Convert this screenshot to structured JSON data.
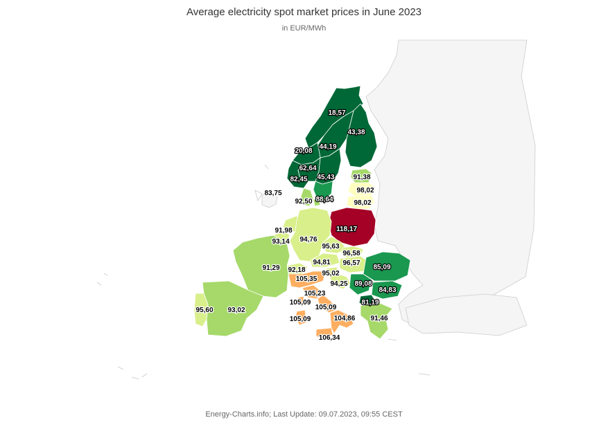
{
  "title": "Average electricity spot market prices in June 2023",
  "subtitle": "in EUR/MWh",
  "footer": "Energy-Charts.info; Last Update: 09.07.2023, 09:55 CEST",
  "colors": {
    "darkgreen": "#006837",
    "green": "#1a9850",
    "lightgreen": "#a6d96a",
    "yellowgreen": "#d9ef8b",
    "paleyellow": "#ffffbf",
    "orange": "#fdae61",
    "red": "#a50026",
    "background": "#f5f5f5"
  },
  "regions": [
    {
      "name": "Norway north (NO4)",
      "value": "18,57"
    },
    {
      "name": "Finland",
      "value": "43,38"
    },
    {
      "name": "Sweden SE2",
      "value": "44,19"
    },
    {
      "name": "Norway central (NO3)",
      "value": "20,08"
    },
    {
      "name": "Norway SE (NO1)",
      "value": "62,64"
    },
    {
      "name": "Sweden SE3",
      "value": "45,43"
    },
    {
      "name": "Norway SW (NO2)",
      "value": "82,45"
    },
    {
      "name": "Estonia",
      "value": "91,38"
    },
    {
      "name": "Latvia",
      "value": "98,02"
    },
    {
      "name": "Lithuania",
      "value": "98,02"
    },
    {
      "name": "Great Britain",
      "value": "83,75"
    },
    {
      "name": "Denmark DK1",
      "value": "92,50"
    },
    {
      "name": "Sweden SE4 / Denmark DK2",
      "value": "88,64"
    },
    {
      "name": "Poland",
      "value": "118,17"
    },
    {
      "name": "Netherlands",
      "value": "91,98"
    },
    {
      "name": "Germany",
      "value": "94,76"
    },
    {
      "name": "Belgium",
      "value": "93,14"
    },
    {
      "name": "Czech Republic",
      "value": "95,63"
    },
    {
      "name": "Slovakia",
      "value": "96,58"
    },
    {
      "name": "Hungary",
      "value": "96,57"
    },
    {
      "name": "Austria",
      "value": "94,81"
    },
    {
      "name": "Romania",
      "value": "85,09"
    },
    {
      "name": "France",
      "value": "91,29"
    },
    {
      "name": "Switzerland",
      "value": "92,18"
    },
    {
      "name": "Slovenia",
      "value": "95,02"
    },
    {
      "name": "Italy North",
      "value": "105,35"
    },
    {
      "name": "Croatia",
      "value": "94,25"
    },
    {
      "name": "Serbia",
      "value": "89,08"
    },
    {
      "name": "Bulgaria",
      "value": "84,83"
    },
    {
      "name": "Italy Centre North",
      "value": "105,23"
    },
    {
      "name": "North Macedonia",
      "value": "81,19"
    },
    {
      "name": "Corsica / Sardinia",
      "value": "105,09"
    },
    {
      "name": "Italy Centre South",
      "value": "105,09"
    },
    {
      "name": "Portugal",
      "value": "95,60"
    },
    {
      "name": "Spain",
      "value": "93,02"
    },
    {
      "name": "Sardinia",
      "value": "105,09"
    },
    {
      "name": "Italy South",
      "value": "104,86"
    },
    {
      "name": "Greece",
      "value": "91,46"
    },
    {
      "name": "Sicily",
      "value": "106,34"
    }
  ]
}
